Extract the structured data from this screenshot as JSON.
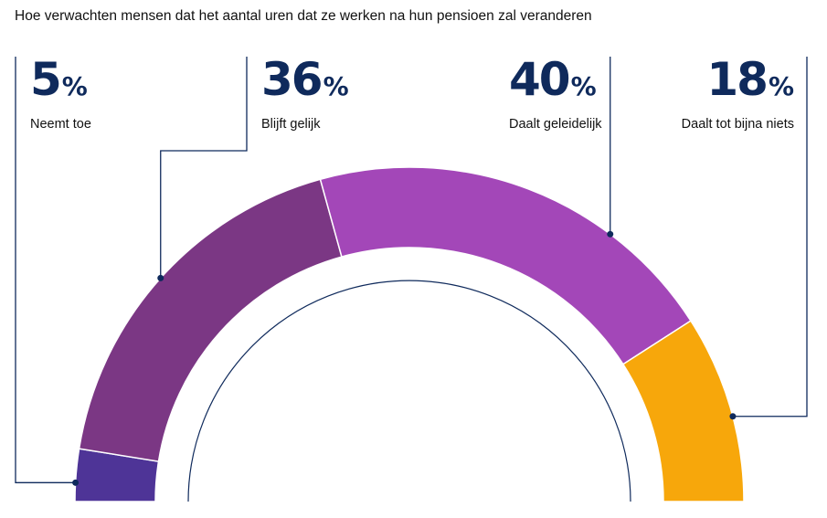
{
  "title": "Hoe verwachten mensen dat het aantal uren dat ze werken na hun pensioen zal veranderen",
  "chart_data": {
    "type": "pie",
    "subtype": "semi-donut",
    "title": "Hoe verwachten mensen dat het aantal uren dat ze werken na hun pensioen zal veranderen",
    "unit": "%",
    "categories": [
      "Neemt toe",
      "Blijft gelijk",
      "Daalt geleidelijk",
      "Daalt tot bijna niets"
    ],
    "values": [
      5,
      36,
      40,
      18
    ],
    "colors": [
      "#4e3497",
      "#7b3784",
      "#a347b8",
      "#f7a70b"
    ],
    "percent_sign": "%"
  },
  "accent_color": "#0f2a5c"
}
